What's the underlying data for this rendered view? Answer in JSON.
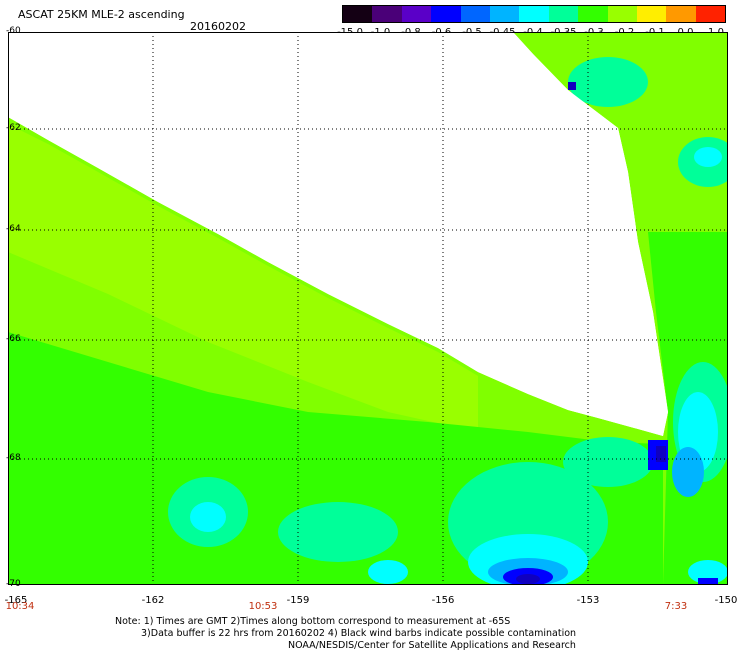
{
  "header": {
    "title": "ASCAT 25KM MLE-2 ascending",
    "date": "20160202"
  },
  "colorbar": {
    "labels": [
      "-15.0",
      "-1.0",
      "-0.8",
      "-0.6",
      "-0.5",
      "-0.45",
      "-0.4",
      "-0.35",
      "-0.3",
      "-0.2",
      "-0.1",
      "0.0",
      "1.0"
    ],
    "colors": [
      "#140014",
      "#4a0078",
      "#5a00c8",
      "#0000ff",
      "#0066ff",
      "#00b4ff",
      "#00ffff",
      "#00ff99",
      "#33ff00",
      "#99ff00",
      "#ffee00",
      "#ff9900",
      "#ff2200"
    ]
  },
  "map": {
    "lat_labels": [
      "-60",
      "-62",
      "-64",
      "-66",
      "-68",
      "-70"
    ],
    "lon_labels": [
      "-165",
      "-162",
      "-159",
      "-156",
      "-153",
      "-150"
    ],
    "time_labels": [
      "10:34",
      "10:53",
      "7:33"
    ],
    "palette": {
      "green": "#33ff00",
      "lime": "#66ff00",
      "yellow_green": "#99ff00",
      "teal_green": "#00ff99",
      "cyan": "#00ffff",
      "sky": "#00b4ff",
      "blue": "#0066ff",
      "deep_blue": "#0000ff",
      "dark_blue": "#1000c0"
    }
  },
  "footer": {
    "line1": "Note: 1) Times are GMT 2)Times along bottom correspond to measurement at -65S",
    "line2": "3)Data buffer is 22 hrs from 20160202 4) Black wind barbs indicate possible contamination",
    "line3": "NOAA/NESDIS/Center for Satellite Applications and Research"
  }
}
